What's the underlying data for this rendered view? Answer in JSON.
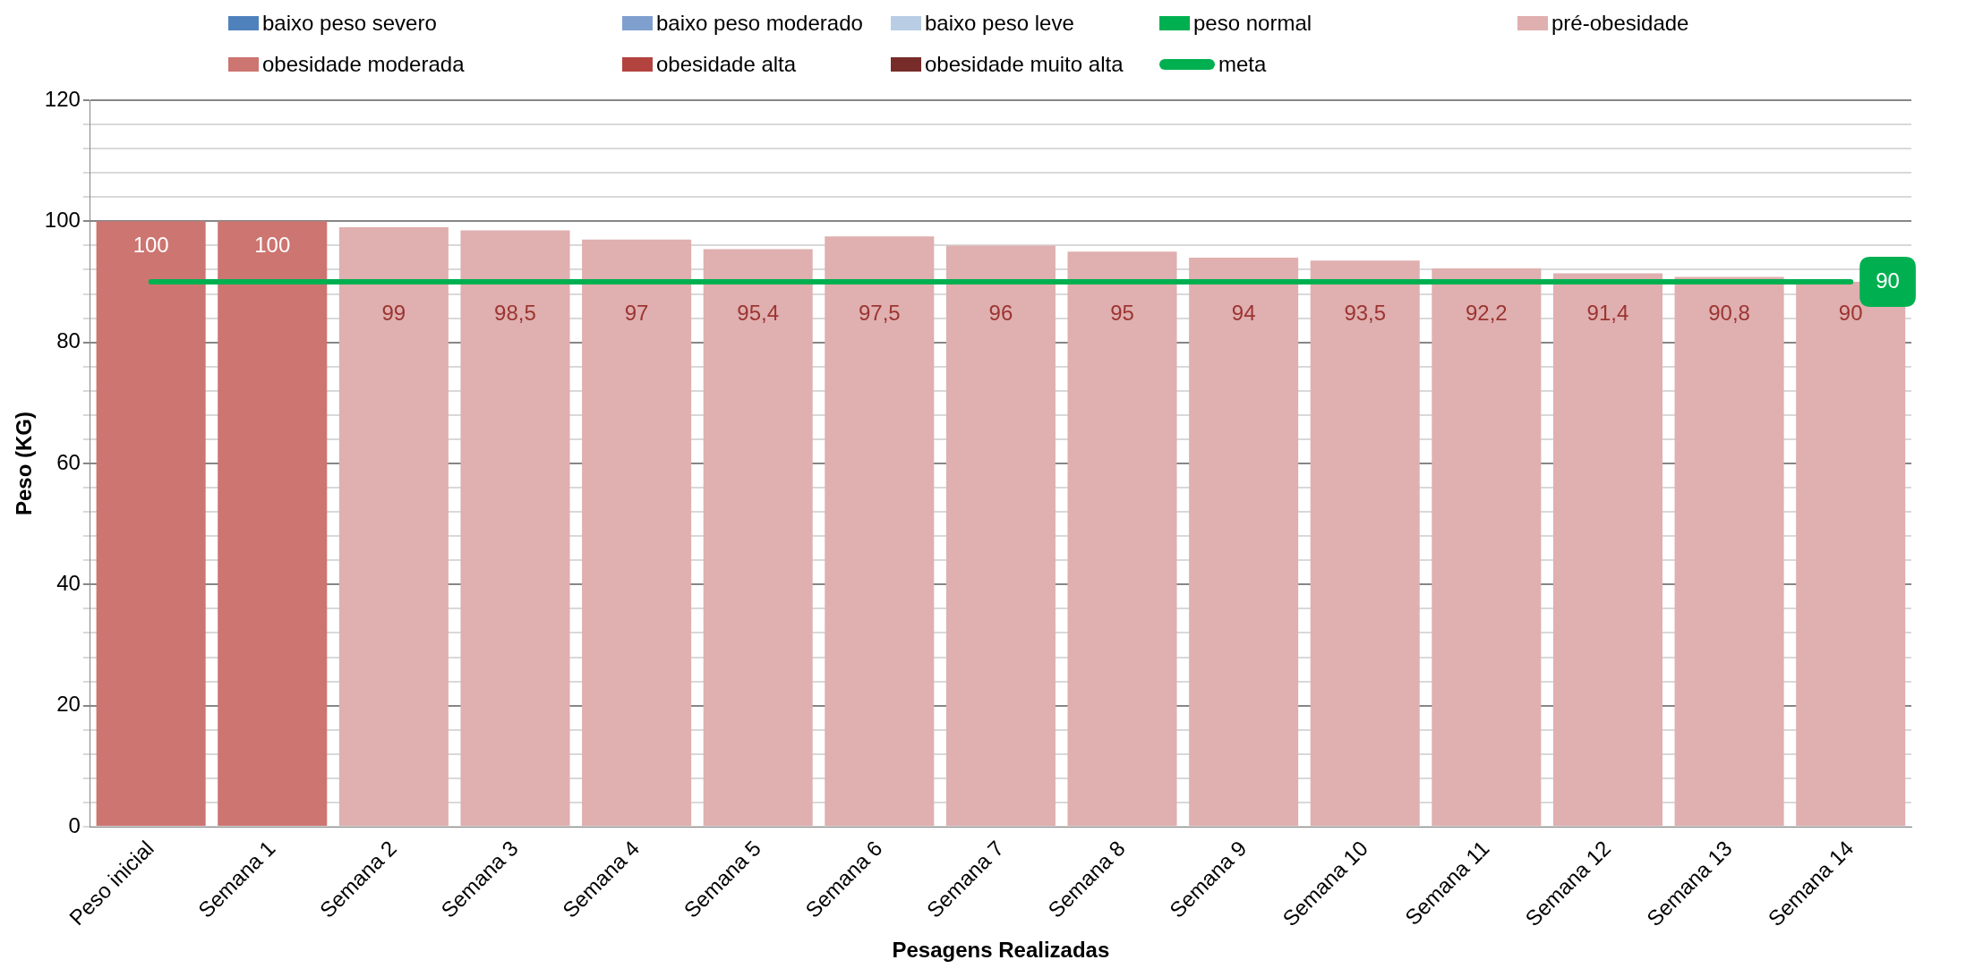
{
  "chart_data": {
    "type": "bar",
    "stacked": true,
    "xlabel": "Pesagens Realizadas",
    "ylabel": "Peso (KG)",
    "categories": [
      "Peso inicial",
      "Semana 1",
      "Semana 2",
      "Semana 3",
      "Semana 4",
      "Semana 5",
      "Semana 6",
      "Semana 7",
      "Semana 8",
      "Semana 9",
      "Semana 10",
      "Semana 11",
      "Semana 12",
      "Semana 13",
      "Semana 14"
    ],
    "ylim": [
      0,
      120
    ],
    "yticks": [
      0,
      {
        "value": 4,
        "label": null
      },
      {
        "value": 8,
        "label": null
      },
      {
        "value": 12,
        "label": null
      },
      {
        "value": 16,
        "label": null
      },
      20,
      {
        "value": 24,
        "label": null
      },
      {
        "value": 28,
        "label": null
      },
      {
        "value": 32,
        "label": null
      },
      {
        "value": 36,
        "label": null
      },
      40,
      {
        "value": 44,
        "label": null
      },
      {
        "value": 48,
        "label": null
      },
      {
        "value": 52,
        "label": null
      },
      {
        "value": 56,
        "label": null
      },
      60,
      {
        "value": 64,
        "label": null
      },
      {
        "value": 68,
        "label": null
      },
      {
        "value": 72,
        "label": null
      },
      {
        "value": 76,
        "label": null
      },
      80,
      {
        "value": 84,
        "label": null
      },
      {
        "value": 88,
        "label": null
      },
      {
        "value": 92,
        "label": null
      },
      {
        "value": 96,
        "label": null
      },
      100,
      {
        "value": 104,
        "label": null
      },
      {
        "value": 108,
        "label": null
      },
      {
        "value": 112,
        "label": null
      },
      {
        "value": 116,
        "label": null
      },
      120
    ],
    "grid": "y",
    "legend": "top",
    "marker": "none",
    "series": [
      {
        "name": "baixo peso severo",
        "color": "#4f81bd",
        "values": [
          null,
          null,
          null,
          null,
          null,
          null,
          null,
          null,
          null,
          null,
          null,
          null,
          null,
          null,
          null
        ]
      },
      {
        "name": "baixo peso moderado",
        "color": "#7f9fcf",
        "values": [
          null,
          null,
          null,
          null,
          null,
          null,
          null,
          null,
          null,
          null,
          null,
          null,
          null,
          null,
          null
        ]
      },
      {
        "name": "baixo peso leve",
        "color": "#b9cde5",
        "values": [
          null,
          null,
          null,
          null,
          null,
          null,
          null,
          null,
          null,
          null,
          null,
          null,
          null,
          null,
          null
        ]
      },
      {
        "name": "peso normal",
        "color": "#00b050",
        "values": [
          null,
          null,
          null,
          null,
          null,
          null,
          null,
          null,
          null,
          null,
          null,
          null,
          null,
          null,
          null
        ]
      },
      {
        "name": "pré-obesidade",
        "color": "#e0afaf",
        "values": [
          null,
          null,
          99,
          98.5,
          97,
          95.4,
          97.5,
          96,
          95,
          94,
          93.5,
          92.2,
          91.4,
          90.8,
          90
        ],
        "value_labels": [
          null,
          null,
          "99",
          "98,5",
          "97",
          "95,4",
          "97,5",
          "96",
          "95",
          "94",
          "93,5",
          "92,2",
          "91,4",
          "90,8",
          "90"
        ]
      },
      {
        "name": "obesidade moderada",
        "color": "#cd7571",
        "values": [
          100,
          100,
          null,
          null,
          null,
          null,
          null,
          null,
          null,
          null,
          null,
          null,
          null,
          null,
          null
        ],
        "value_labels": [
          "100",
          "100",
          null,
          null,
          null,
          null,
          null,
          null,
          null,
          null,
          null,
          null,
          null,
          null,
          null
        ]
      },
      {
        "name": "obesidade alta",
        "color": "#b3433f",
        "values": [
          null,
          null,
          null,
          null,
          null,
          null,
          null,
          null,
          null,
          null,
          null,
          null,
          null,
          null,
          null
        ]
      },
      {
        "name": "obesidade muito alta",
        "color": "#772c2a",
        "values": [
          null,
          null,
          null,
          null,
          null,
          null,
          null,
          null,
          null,
          null,
          null,
          null,
          null,
          null,
          null
        ]
      },
      {
        "name": "meta",
        "type": "line",
        "color": "#00b050",
        "values": [
          90,
          90,
          90,
          90,
          90,
          90,
          90,
          90,
          90,
          90,
          90,
          90,
          90,
          90,
          90
        ],
        "value_labels": [
          null,
          null,
          null,
          null,
          null,
          null,
          null,
          null,
          null,
          null,
          null,
          null,
          null,
          null,
          "90"
        ]
      }
    ]
  }
}
